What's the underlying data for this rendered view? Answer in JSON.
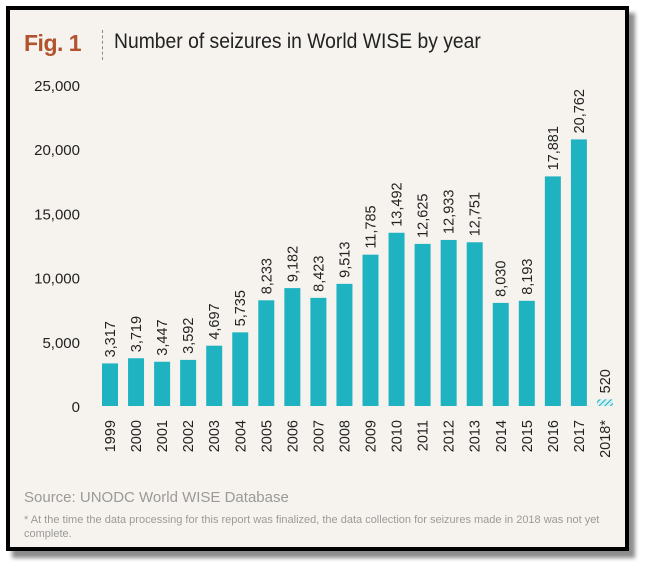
{
  "header": {
    "fig_label": "Fig. 1",
    "title": "Number of seizures in World WISE by year"
  },
  "footer": {
    "source": "Source: UNODC World WISE Database",
    "footnote": "* At the time the data processing for this report was finalized, the data collection for seizures made in 2018 was not yet complete."
  },
  "colors": {
    "bar": "#1fb3c1",
    "fig_label": "#b2522e",
    "background": "#f6f3ee"
  },
  "chart_data": {
    "type": "bar",
    "title": "Number of seizures in World WISE by year",
    "xlabel": "",
    "ylabel": "",
    "ylim": [
      0,
      25000
    ],
    "yticks": [
      0,
      5000,
      10000,
      15000,
      20000,
      25000
    ],
    "ytick_labels": [
      "0",
      "5,000",
      "10,000",
      "15,000",
      "20,000",
      "25,000"
    ],
    "grid": false,
    "categories": [
      "1999",
      "2000",
      "2001",
      "2002",
      "2003",
      "2004",
      "2005",
      "2006",
      "2007",
      "2008",
      "2009",
      "2010",
      "2011",
      "2012",
      "2013",
      "2014",
      "2015",
      "2016",
      "2017",
      "2018*"
    ],
    "values": [
      3317,
      3719,
      3447,
      3592,
      4697,
      5735,
      8233,
      9182,
      8423,
      9513,
      11785,
      13492,
      12625,
      12933,
      12751,
      8030,
      8193,
      17881,
      20762,
      520
    ],
    "value_labels": [
      "3,317",
      "3,719",
      "3,447",
      "3,592",
      "4,697",
      "5,735",
      "8,233",
      "9,182",
      "8,423",
      "9,513",
      "11,785",
      "13,492",
      "12,625",
      "12,933",
      "12,751",
      "8,030",
      "8,193",
      "17,881",
      "20,762",
      "520"
    ],
    "hatched": [
      "2018*"
    ]
  }
}
